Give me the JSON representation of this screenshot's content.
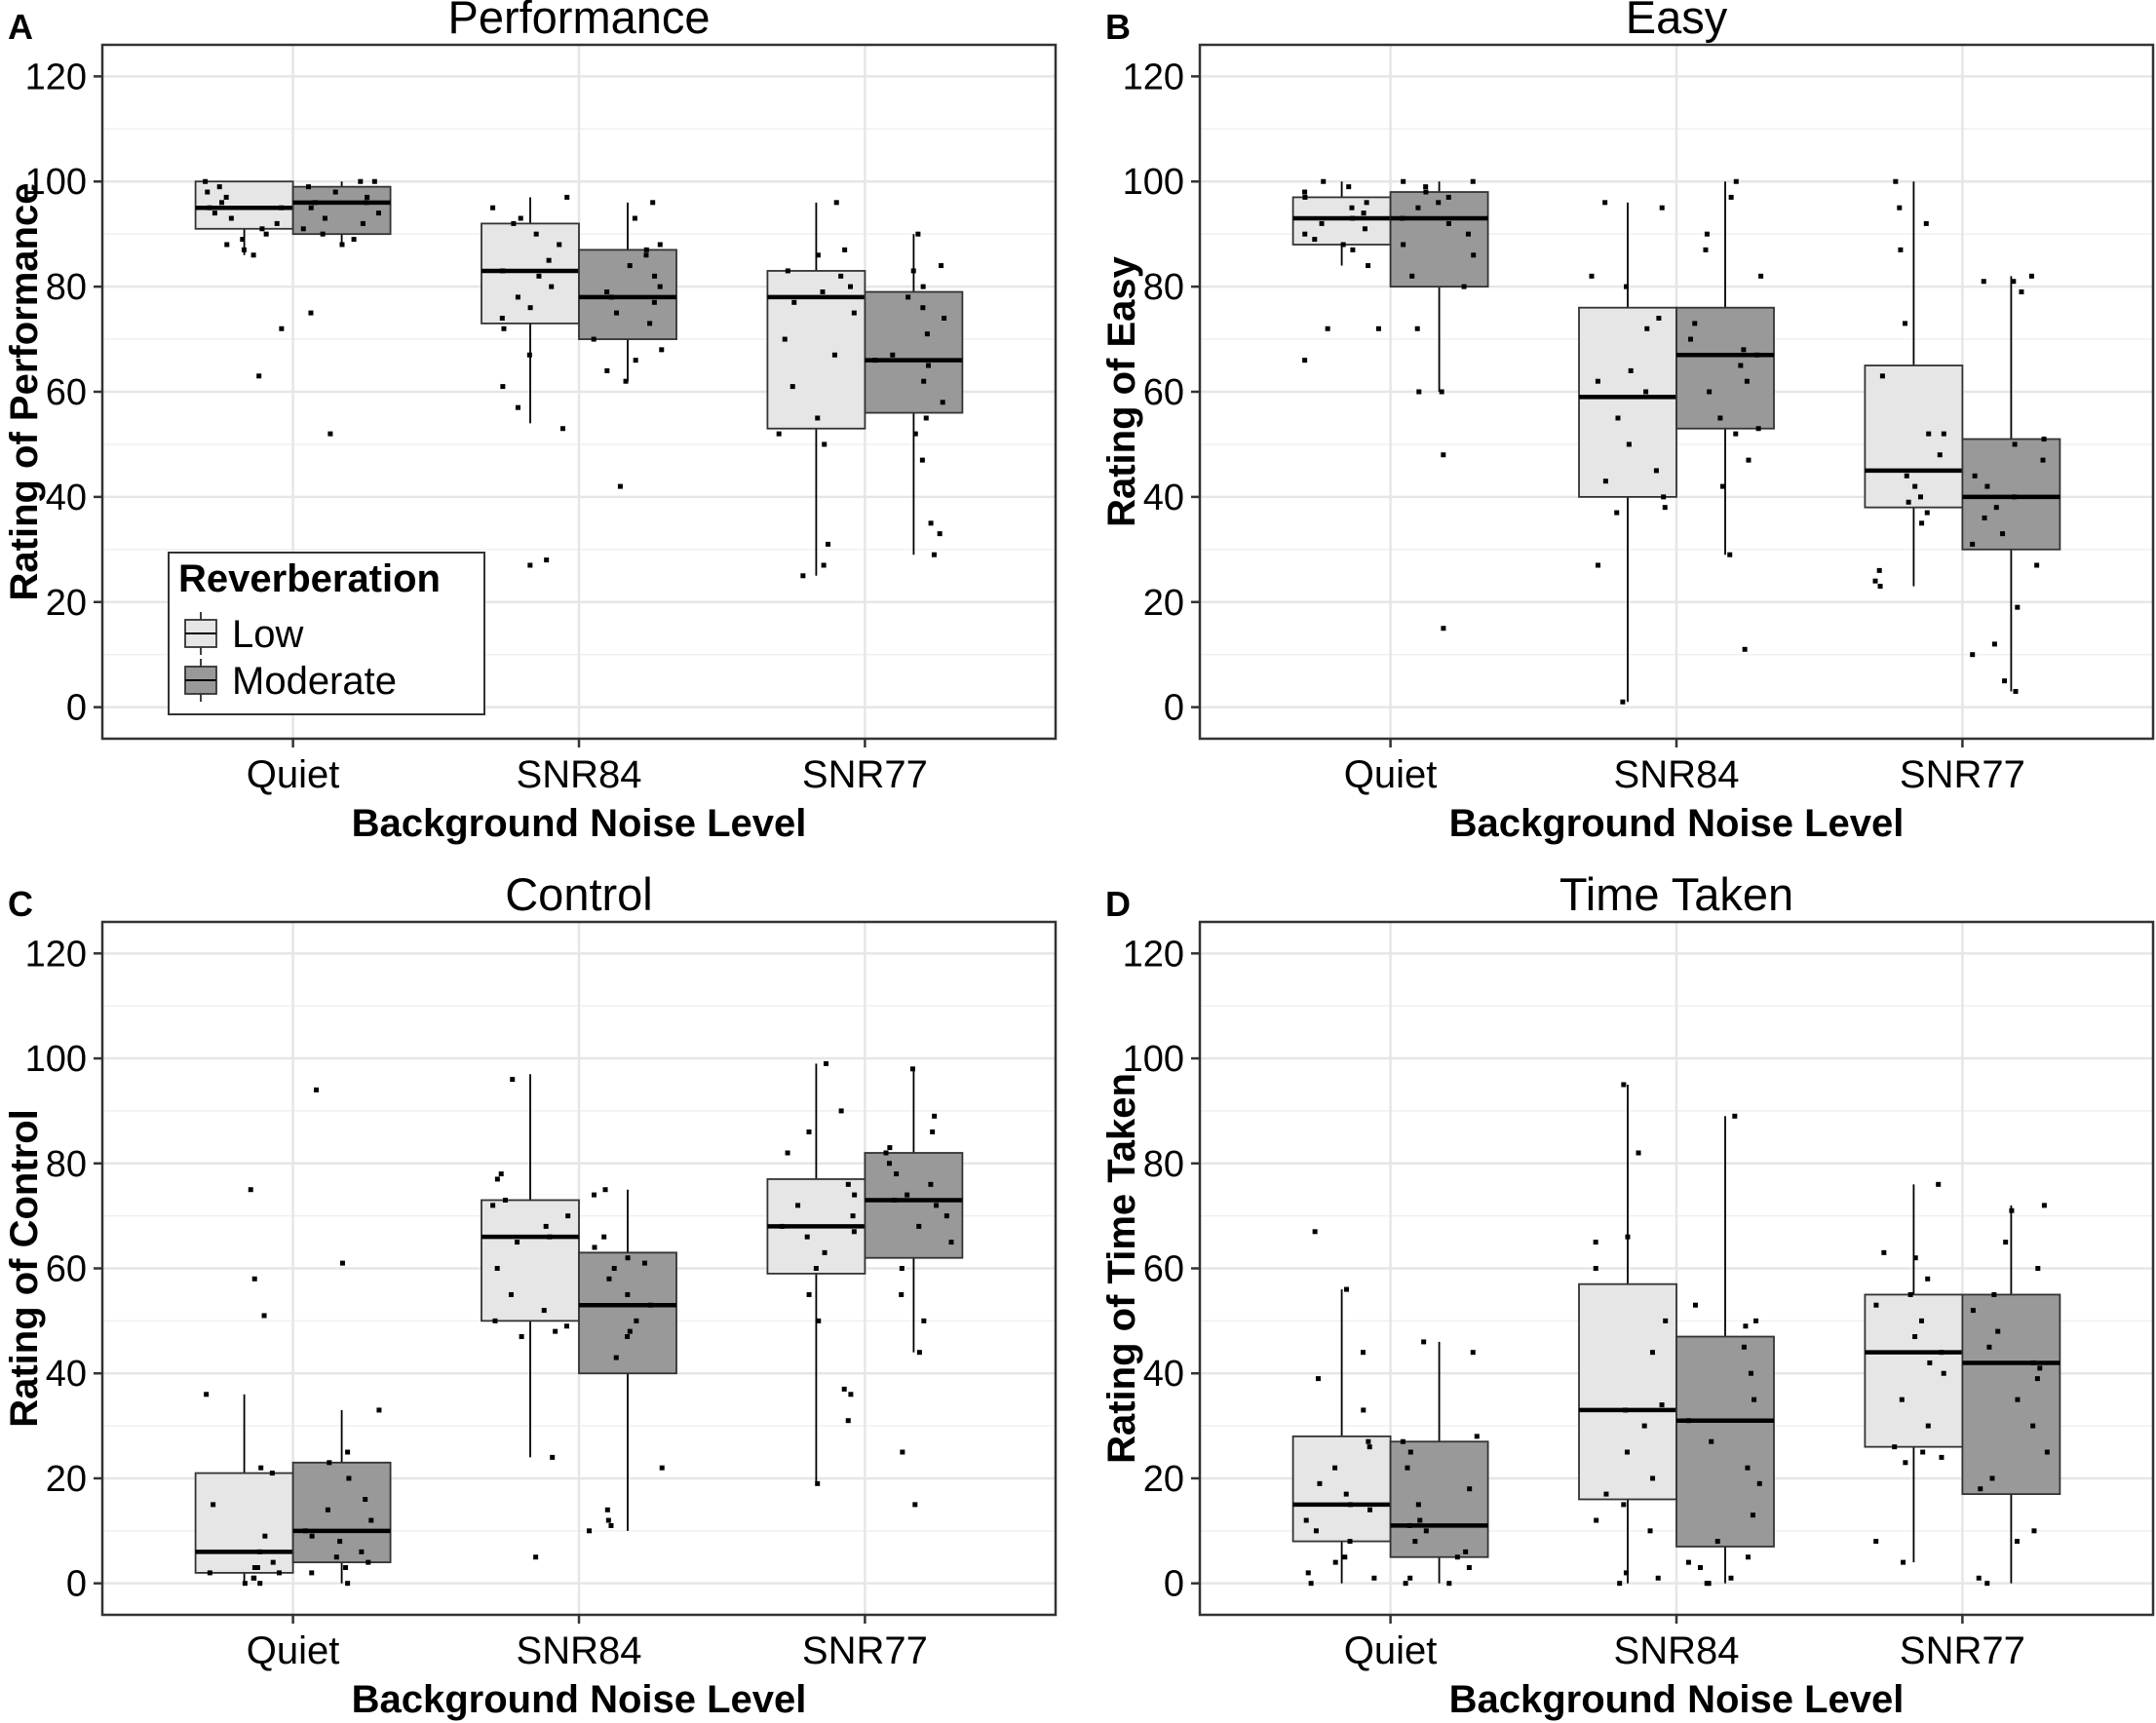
{
  "figure": {
    "x_axis_title": "Background Noise Level",
    "legend": {
      "title": "Reverberation",
      "items": [
        {
          "label": "Low",
          "color": "#e6e6e6"
        },
        {
          "label": "Moderate",
          "color": "#999999"
        }
      ]
    }
  },
  "chart_data": [
    {
      "type": "boxplot",
      "letter": "A",
      "title": "Performance",
      "xlabel": "Background Noise Level",
      "ylabel": "Rating of Performance",
      "ylim": [
        -6,
        126
      ],
      "yticks": [
        0,
        20,
        40,
        60,
        80,
        100,
        120
      ],
      "categories": [
        "Quiet",
        "SNR84",
        "SNR77"
      ],
      "series": [
        {
          "name": "Low",
          "color": "#e6e6e6",
          "boxes": [
            {
              "whisker_low": 86,
              "q1": 91,
              "median": 95,
              "q3": 100,
              "whisker_high": 100,
              "points": [
                100,
                99,
                98,
                97,
                96,
                95,
                95,
                94,
                93,
                92,
                91,
                90,
                89,
                88,
                87,
                86,
                72,
                63
              ]
            },
            {
              "whisker_low": 54,
              "q1": 73,
              "median": 83,
              "q3": 92,
              "whisker_high": 97,
              "points": [
                97,
                95,
                93,
                92,
                90,
                88,
                85,
                83,
                82,
                80,
                78,
                76,
                74,
                72,
                67,
                61,
                57,
                53,
                28,
                27
              ]
            },
            {
              "whisker_low": 25,
              "q1": 53,
              "median": 78,
              "q3": 83,
              "whisker_high": 96,
              "points": [
                96,
                87,
                86,
                83,
                82,
                80,
                79,
                77,
                75,
                70,
                67,
                61,
                55,
                52,
                50,
                31,
                27,
                25
              ]
            }
          ]
        },
        {
          "name": "Moderate",
          "color": "#999999",
          "boxes": [
            {
              "whisker_low": 88,
              "q1": 90,
              "median": 96,
              "q3": 99,
              "whisker_high": 100,
              "points": [
                100,
                100,
                99,
                98,
                97,
                96,
                96,
                95,
                94,
                93,
                92,
                91,
                90,
                89,
                88,
                75,
                52
              ]
            },
            {
              "whisker_low": 62,
              "q1": 70,
              "median": 78,
              "q3": 87,
              "whisker_high": 96,
              "points": [
                96,
                93,
                88,
                87,
                86,
                84,
                82,
                80,
                79,
                78,
                77,
                75,
                73,
                70,
                68,
                66,
                64,
                62,
                42
              ]
            },
            {
              "whisker_low": 29,
              "q1": 56,
              "median": 66,
              "q3": 79,
              "whisker_high": 90,
              "points": [
                90,
                84,
                83,
                80,
                78,
                76,
                74,
                71,
                67,
                66,
                65,
                62,
                58,
                55,
                52,
                47,
                35,
                33,
                29
              ]
            }
          ]
        }
      ],
      "legend_position": "bottom-left"
    },
    {
      "type": "boxplot",
      "letter": "B",
      "title": "Easy",
      "xlabel": "Background Noise Level",
      "ylabel": "Rating of Easy",
      "ylim": [
        -6,
        126
      ],
      "yticks": [
        0,
        20,
        40,
        60,
        80,
        100,
        120
      ],
      "categories": [
        "Quiet",
        "SNR84",
        "SNR77"
      ],
      "series": [
        {
          "name": "Low",
          "color": "#e6e6e6",
          "boxes": [
            {
              "whisker_low": 84,
              "q1": 88,
              "median": 93,
              "q3": 97,
              "whisker_high": 100,
              "points": [
                100,
                99,
                98,
                97,
                96,
                95,
                94,
                93,
                92,
                91,
                90,
                89,
                88,
                87,
                84,
                72,
                72,
                66
              ]
            },
            {
              "whisker_low": 1,
              "q1": 40,
              "median": 59,
              "q3": 76,
              "whisker_high": 96,
              "points": [
                96,
                95,
                82,
                80,
                74,
                72,
                64,
                62,
                60,
                55,
                50,
                45,
                43,
                40,
                38,
                37,
                27,
                1
              ]
            },
            {
              "whisker_low": 23,
              "q1": 38,
              "median": 45,
              "q3": 65,
              "whisker_high": 100,
              "points": [
                100,
                95,
                92,
                87,
                73,
                63,
                52,
                52,
                48,
                44,
                42,
                40,
                39,
                37,
                35,
                26,
                24,
                23
              ]
            }
          ]
        },
        {
          "name": "Moderate",
          "color": "#999999",
          "boxes": [
            {
              "whisker_low": 60,
              "q1": 80,
              "median": 93,
              "q3": 98,
              "whisker_high": 100,
              "points": [
                100,
                100,
                99,
                98,
                97,
                96,
                95,
                93,
                92,
                90,
                88,
                86,
                82,
                80,
                72,
                60,
                60,
                48,
                15
              ]
            },
            {
              "whisker_low": 29,
              "q1": 53,
              "median": 67,
              "q3": 76,
              "whisker_high": 100,
              "points": [
                100,
                97,
                90,
                87,
                82,
                73,
                70,
                68,
                67,
                65,
                62,
                60,
                55,
                53,
                52,
                47,
                42,
                29,
                11
              ]
            },
            {
              "whisker_low": 3,
              "q1": 30,
              "median": 40,
              "q3": 51,
              "whisker_high": 82,
              "points": [
                82,
                81,
                81,
                79,
                51,
                50,
                47,
                44,
                42,
                40,
                38,
                36,
                33,
                31,
                27,
                19,
                12,
                10,
                5,
                3
              ]
            }
          ]
        }
      ]
    },
    {
      "type": "boxplot",
      "letter": "C",
      "title": "Control",
      "xlabel": "Background Noise Level",
      "ylabel": "Rating of Control",
      "ylim": [
        -6,
        126
      ],
      "yticks": [
        0,
        20,
        40,
        60,
        80,
        100,
        120
      ],
      "categories": [
        "Quiet",
        "SNR84",
        "SNR77"
      ],
      "series": [
        {
          "name": "Low",
          "color": "#e6e6e6",
          "boxes": [
            {
              "whisker_low": 0,
              "q1": 2,
              "median": 6,
              "q3": 21,
              "whisker_high": 36,
              "points": [
                75,
                58,
                51,
                36,
                22,
                21,
                15,
                9,
                6,
                4,
                3,
                3,
                2,
                2,
                1,
                1,
                0,
                0
              ]
            },
            {
              "whisker_low": 24,
              "q1": 50,
              "median": 66,
              "q3": 73,
              "whisker_high": 97,
              "points": [
                96,
                78,
                77,
                73,
                72,
                70,
                68,
                66,
                65,
                60,
                55,
                52,
                50,
                49,
                48,
                47,
                24,
                5
              ]
            },
            {
              "whisker_low": 19,
              "q1": 59,
              "median": 68,
              "q3": 77,
              "whisker_high": 99,
              "points": [
                99,
                90,
                86,
                82,
                76,
                74,
                72,
                70,
                68,
                67,
                66,
                63,
                60,
                55,
                50,
                37,
                36,
                31,
                19
              ]
            }
          ]
        },
        {
          "name": "Moderate",
          "color": "#999999",
          "boxes": [
            {
              "whisker_low": 0,
              "q1": 4,
              "median": 10,
              "q3": 23,
              "whisker_high": 33,
              "points": [
                94,
                61,
                33,
                25,
                23,
                20,
                16,
                14,
                12,
                10,
                9,
                8,
                6,
                5,
                4,
                3,
                2,
                0
              ]
            },
            {
              "whisker_low": 10,
              "q1": 40,
              "median": 53,
              "q3": 63,
              "whisker_high": 75,
              "points": [
                75,
                74,
                66,
                64,
                62,
                61,
                60,
                58,
                55,
                53,
                50,
                48,
                47,
                43,
                22,
                14,
                12,
                11,
                10
              ]
            },
            {
              "whisker_low": 44,
              "q1": 62,
              "median": 73,
              "q3": 82,
              "whisker_high": 98,
              "points": [
                98,
                89,
                86,
                83,
                82,
                80,
                78,
                76,
                74,
                73,
                72,
                70,
                68,
                65,
                60,
                55,
                50,
                44,
                25,
                15
              ]
            }
          ]
        }
      ]
    },
    {
      "type": "boxplot",
      "letter": "D",
      "title": "Time Taken",
      "xlabel": "Background Noise Level",
      "ylabel": "Rating of Time Taken",
      "ylim": [
        -6,
        126
      ],
      "yticks": [
        0,
        20,
        40,
        60,
        80,
        100,
        120
      ],
      "categories": [
        "Quiet",
        "SNR84",
        "SNR77"
      ],
      "series": [
        {
          "name": "Low",
          "color": "#e6e6e6",
          "boxes": [
            {
              "whisker_low": 0,
              "q1": 8,
              "median": 15,
              "q3": 28,
              "whisker_high": 56,
              "points": [
                67,
                56,
                44,
                39,
                33,
                27,
                26,
                22,
                19,
                17,
                15,
                14,
                12,
                10,
                8,
                5,
                4,
                2,
                1,
                0
              ]
            },
            {
              "whisker_low": 0,
              "q1": 16,
              "median": 33,
              "q3": 57,
              "whisker_high": 95,
              "points": [
                95,
                82,
                66,
                65,
                60,
                50,
                44,
                34,
                33,
                30,
                25,
                20,
                17,
                15,
                12,
                10,
                2,
                1,
                0
              ]
            },
            {
              "whisker_low": 4,
              "q1": 26,
              "median": 44,
              "q3": 55,
              "whisker_high": 76,
              "points": [
                76,
                63,
                62,
                58,
                55,
                53,
                50,
                47,
                44,
                42,
                40,
                35,
                30,
                26,
                25,
                24,
                23,
                8,
                4
              ]
            }
          ]
        },
        {
          "name": "Moderate",
          "color": "#999999",
          "boxes": [
            {
              "whisker_low": 0,
              "q1": 5,
              "median": 11,
              "q3": 27,
              "whisker_high": 46,
              "points": [
                46,
                44,
                28,
                27,
                25,
                22,
                18,
                15,
                12,
                11,
                10,
                8,
                6,
                5,
                3,
                1,
                0,
                0
              ]
            },
            {
              "whisker_low": 0,
              "q1": 7,
              "median": 31,
              "q3": 47,
              "whisker_high": 89,
              "points": [
                89,
                53,
                50,
                49,
                45,
                40,
                35,
                31,
                27,
                22,
                19,
                13,
                8,
                5,
                4,
                3,
                1,
                0,
                0
              ]
            },
            {
              "whisker_low": 0,
              "q1": 17,
              "median": 42,
              "q3": 55,
              "whisker_high": 72,
              "points": [
                72,
                71,
                65,
                60,
                55,
                52,
                48,
                45,
                42,
                41,
                39,
                35,
                30,
                25,
                20,
                18,
                10,
                8,
                1,
                0
              ]
            }
          ]
        }
      ]
    }
  ]
}
